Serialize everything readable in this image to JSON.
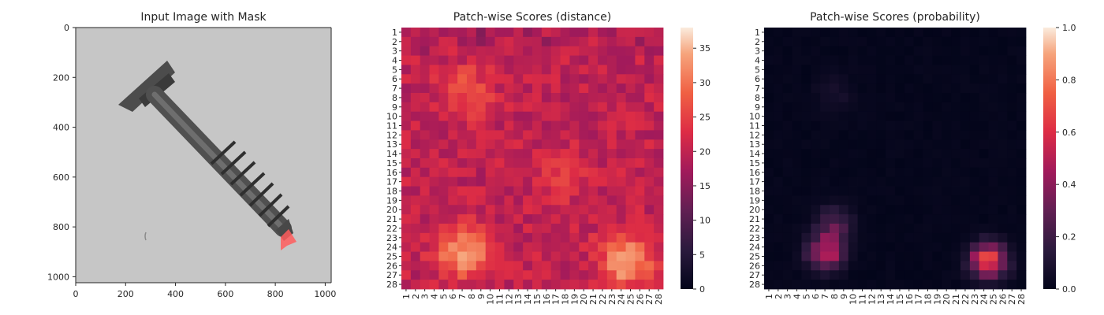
{
  "chart_data": [
    {
      "type": "image",
      "title": "Input Image with Mask",
      "x_ticks": [
        "0",
        "200",
        "400",
        "600",
        "800",
        "1000"
      ],
      "y_ticks": [
        "0",
        "200",
        "400",
        "600",
        "800",
        "1000"
      ],
      "xlim": [
        0,
        1024
      ],
      "ylim": [
        0,
        1024
      ],
      "content": "grayscale screw photograph with red mask at tip",
      "colors": {
        "background": "#c4c4c4",
        "screw": "#4a4a4a",
        "mask": "#ff5a5a"
      }
    },
    {
      "type": "heatmap",
      "title": "Patch-wise Scores (distance)",
      "rows": 28,
      "cols": 28,
      "colorbar_ticks": [
        "0",
        "5",
        "10",
        "15",
        "20",
        "25",
        "30",
        "35"
      ],
      "vmin": 0,
      "vmax": 38,
      "base_value": 20,
      "hotspots": [
        {
          "row": 7.5,
          "col": 7.5,
          "value": 28
        },
        {
          "row": 16.5,
          "col": 17.5,
          "value": 24
        },
        {
          "row": 24.5,
          "col": 7.0,
          "value": 34
        },
        {
          "row": 25.5,
          "col": 24.5,
          "value": 36
        }
      ]
    },
    {
      "type": "heatmap",
      "title": "Patch-wise Scores (probability)",
      "rows": 28,
      "cols": 28,
      "colorbar_ticks": [
        "0.0",
        "0.2",
        "0.4",
        "0.6",
        "0.8",
        "1.0"
      ],
      "vmin": 0,
      "vmax": 1,
      "base_value": 0.02,
      "hotspots": [
        {
          "row": 7.5,
          "col": 8.0,
          "value": 0.07
        },
        {
          "row": 21.5,
          "col": 8.0,
          "value": 0.25
        },
        {
          "row": 24.5,
          "col": 7.0,
          "value": 0.55
        },
        {
          "row": 25.5,
          "col": 24.5,
          "value": 0.75
        }
      ]
    }
  ]
}
